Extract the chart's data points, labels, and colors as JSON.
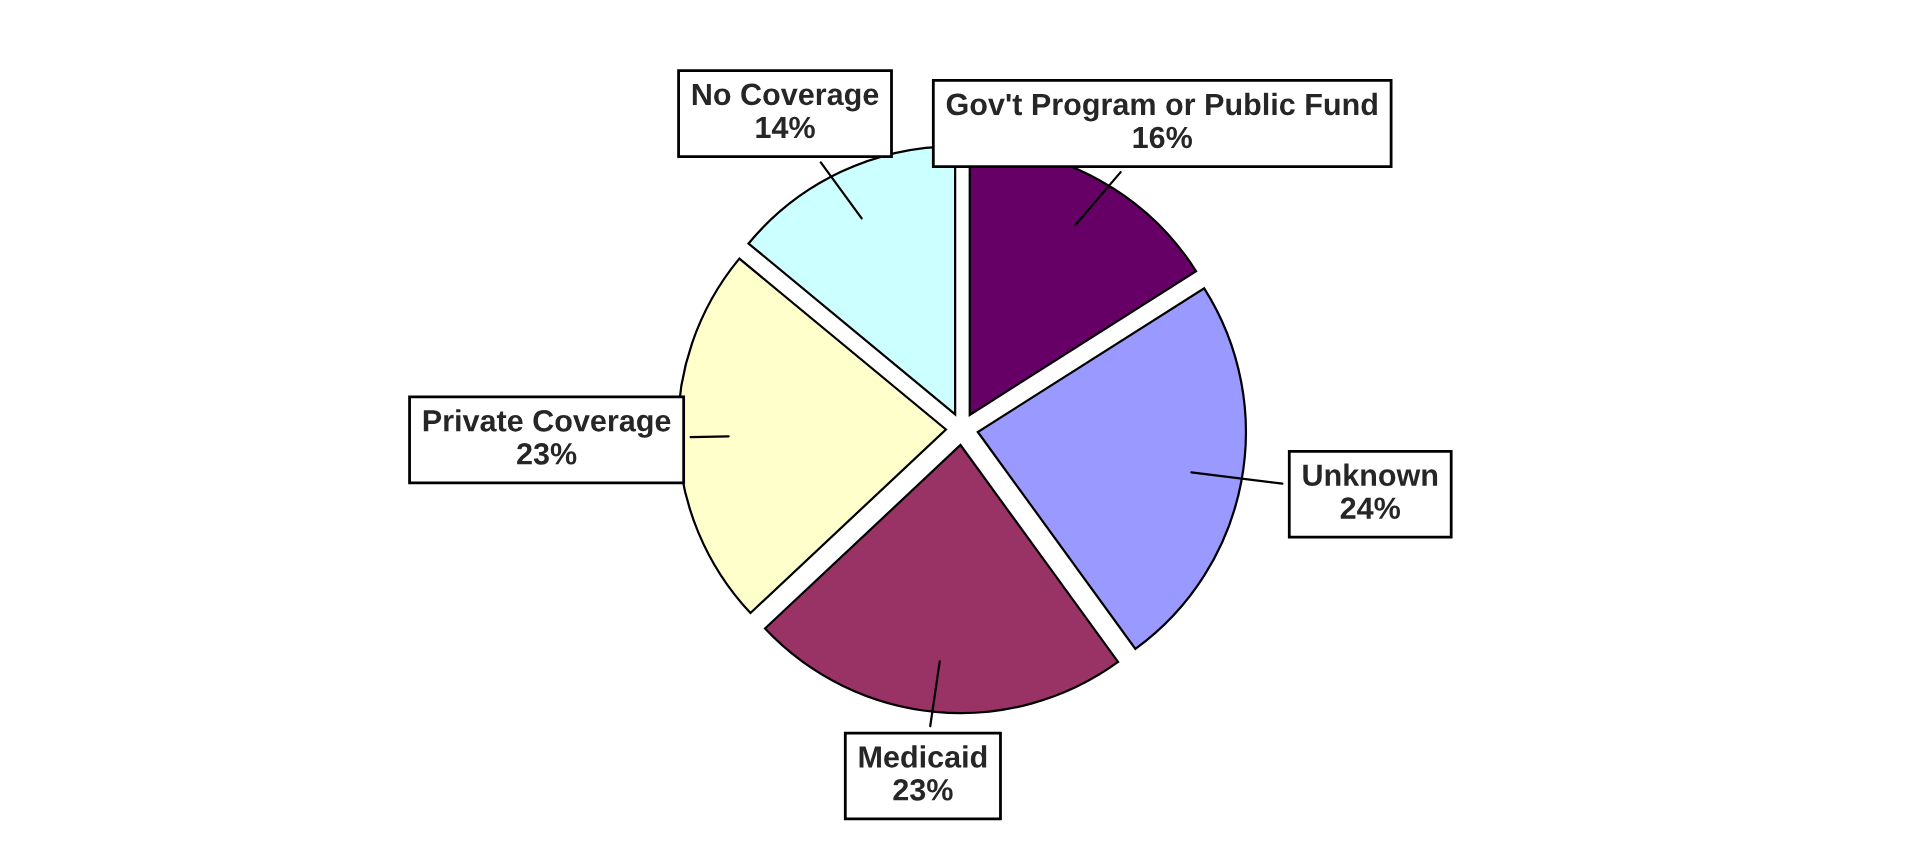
{
  "chart_data": {
    "type": "pie",
    "categories": [
      "Gov't Program or Public Fund",
      "Unknown",
      "Medicaid",
      "Private Coverage",
      "No Coverage"
    ],
    "values": [
      16,
      24,
      23,
      23,
      14
    ],
    "colors": [
      "#660066",
      "#9999ff",
      "#993366",
      "#ffffcc",
      "#ccffff"
    ],
    "value_labels": [
      "16%",
      "24%",
      "23%",
      "23%",
      "14%"
    ]
  }
}
